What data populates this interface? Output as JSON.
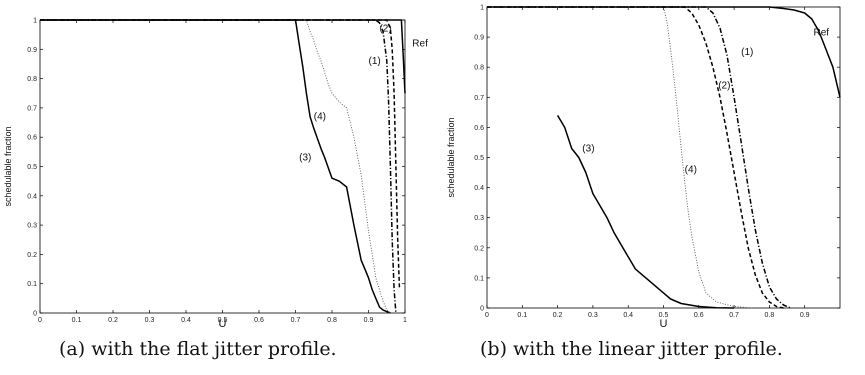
{
  "chart_data": [
    {
      "type": "line",
      "caption": "(a) with the flat jitter profile.",
      "xlabel": "U",
      "ylabel": "schedulable fraction",
      "xlim": [
        0,
        1
      ],
      "ylim": [
        0,
        1
      ],
      "xticks": [
        "0",
        "0.1",
        "0.2",
        "0.3",
        "0.4",
        "0.5",
        "0.6",
        "0.7",
        "0.8",
        "0.9",
        "1"
      ],
      "yticks": [
        "0",
        "0.1",
        "0.2",
        "0.3",
        "0.4",
        "0.5",
        "0.6",
        "0.7",
        "0.8",
        "0.9",
        "1"
      ],
      "grid": false,
      "series": [
        {
          "name": "(3)",
          "style": "solid",
          "x": [
            0,
            0.7,
            0.71,
            0.72,
            0.73,
            0.74,
            0.75,
            0.77,
            0.78,
            0.8,
            0.82,
            0.84,
            0.86,
            0.88,
            0.89,
            0.9,
            0.91,
            0.92,
            0.93,
            0.94,
            0.96
          ],
          "y": [
            1,
            1.0,
            0.92,
            0.84,
            0.75,
            0.67,
            0.63,
            0.56,
            0.53,
            0.46,
            0.45,
            0.43,
            0.3,
            0.18,
            0.15,
            0.12,
            0.08,
            0.05,
            0.02,
            0.01,
            0.0
          ]
        },
        {
          "name": "(4)",
          "style": "dotted",
          "x": [
            0,
            0.73,
            0.74,
            0.75,
            0.76,
            0.77,
            0.78,
            0.79,
            0.8,
            0.82,
            0.84,
            0.86,
            0.88,
            0.9,
            0.92,
            0.94,
            0.95,
            0.96
          ],
          "y": [
            1,
            1.0,
            0.96,
            0.93,
            0.89,
            0.86,
            0.82,
            0.78,
            0.75,
            0.72,
            0.7,
            0.6,
            0.47,
            0.28,
            0.12,
            0.04,
            0.01,
            0.0
          ]
        },
        {
          "name": "(1)",
          "style": "dashdot",
          "x": [
            0,
            0.92,
            0.93,
            0.94,
            0.95,
            0.955,
            0.96,
            0.965,
            0.97,
            0.975
          ],
          "y": [
            1,
            1.0,
            0.99,
            0.96,
            0.86,
            0.72,
            0.5,
            0.25,
            0.08,
            0.0
          ]
        },
        {
          "name": "(2)",
          "style": "dashed",
          "x": [
            0,
            0.95,
            0.96,
            0.965,
            0.97,
            0.975,
            0.98,
            0.985
          ],
          "y": [
            1,
            1.0,
            0.97,
            0.9,
            0.75,
            0.5,
            0.25,
            0.08
          ]
        },
        {
          "name": "Ref",
          "style": "solid",
          "x": [
            0,
            0.99,
            0.995,
            1.0
          ],
          "y": [
            1,
            1.0,
            0.88,
            0.75
          ]
        }
      ],
      "annotations": [
        {
          "text": "(3)",
          "x": 0.71,
          "y": 0.52
        },
        {
          "text": "(4)",
          "x": 0.75,
          "y": 0.66
        },
        {
          "text": "(1)",
          "x": 0.9,
          "y": 0.85
        },
        {
          "text": "(2)",
          "x": 0.93,
          "y": 0.96
        },
        {
          "text": "Ref",
          "x": 1.02,
          "y": 0.91
        }
      ]
    },
    {
      "type": "line",
      "caption": "(b) with the linear jitter profile.",
      "xlabel": "U",
      "ylabel": "schedulable fraction",
      "xlim": [
        0,
        1
      ],
      "ylim": [
        0,
        1
      ],
      "xticks": [
        "0",
        "0.1",
        "0.2",
        "0.3",
        "0.4",
        "0.5",
        "0.6",
        "0.7",
        "0.8",
        "0.9"
      ],
      "yticks": [
        "0",
        "0.1",
        "0.2",
        "0.3",
        "0.4",
        "0.5",
        "0.6",
        "0.7",
        "0.8",
        "0.9",
        "1"
      ],
      "grid": false,
      "series": [
        {
          "name": "(3)",
          "style": "solid",
          "x": [
            0.2,
            0.22,
            0.24,
            0.26,
            0.28,
            0.3,
            0.32,
            0.34,
            0.36,
            0.38,
            0.4,
            0.42,
            0.44,
            0.46,
            0.48,
            0.5,
            0.52,
            0.55,
            0.6,
            0.65,
            0.7
          ],
          "y": [
            0.64,
            0.6,
            0.53,
            0.5,
            0.45,
            0.38,
            0.34,
            0.3,
            0.25,
            0.21,
            0.17,
            0.13,
            0.11,
            0.09,
            0.07,
            0.05,
            0.03,
            0.015,
            0.005,
            0.001,
            0.0
          ]
        },
        {
          "name": "(4)",
          "style": "dotted",
          "x": [
            0,
            0.5,
            0.51,
            0.52,
            0.53,
            0.54,
            0.55,
            0.56,
            0.57,
            0.58,
            0.6,
            0.62,
            0.65,
            0.7,
            0.75
          ],
          "y": [
            1,
            1.0,
            0.95,
            0.86,
            0.76,
            0.65,
            0.53,
            0.42,
            0.32,
            0.24,
            0.12,
            0.05,
            0.02,
            0.005,
            0.0
          ]
        },
        {
          "name": "(2)",
          "style": "dashed",
          "x": [
            0,
            0.56,
            0.58,
            0.6,
            0.62,
            0.64,
            0.66,
            0.68,
            0.7,
            0.72,
            0.74,
            0.76,
            0.78,
            0.8,
            0.82,
            0.84
          ],
          "y": [
            1,
            1.0,
            0.98,
            0.94,
            0.88,
            0.8,
            0.7,
            0.58,
            0.45,
            0.32,
            0.2,
            0.11,
            0.05,
            0.02,
            0.005,
            0.0
          ]
        },
        {
          "name": "(1)",
          "style": "dashdot",
          "x": [
            0,
            0.62,
            0.64,
            0.66,
            0.68,
            0.7,
            0.72,
            0.74,
            0.76,
            0.78,
            0.8,
            0.82,
            0.84,
            0.86
          ],
          "y": [
            1,
            1.0,
            0.98,
            0.93,
            0.84,
            0.7,
            0.55,
            0.4,
            0.26,
            0.15,
            0.07,
            0.03,
            0.01,
            0.0
          ]
        },
        {
          "name": "Ref",
          "style": "solid",
          "x": [
            0,
            0.8,
            0.84,
            0.87,
            0.9,
            0.92,
            0.94,
            0.96,
            0.98,
            1.0
          ],
          "y": [
            1,
            1.0,
            0.995,
            0.99,
            0.98,
            0.96,
            0.92,
            0.86,
            0.8,
            0.7
          ]
        }
      ],
      "annotations": [
        {
          "text": "(3)",
          "x": 0.27,
          "y": 0.52
        },
        {
          "text": "(4)",
          "x": 0.56,
          "y": 0.45
        },
        {
          "text": "(2)",
          "x": 0.655,
          "y": 0.73
        },
        {
          "text": "(1)",
          "x": 0.72,
          "y": 0.84
        },
        {
          "text": "Ref",
          "x": 0.925,
          "y": 0.905
        }
      ]
    }
  ]
}
